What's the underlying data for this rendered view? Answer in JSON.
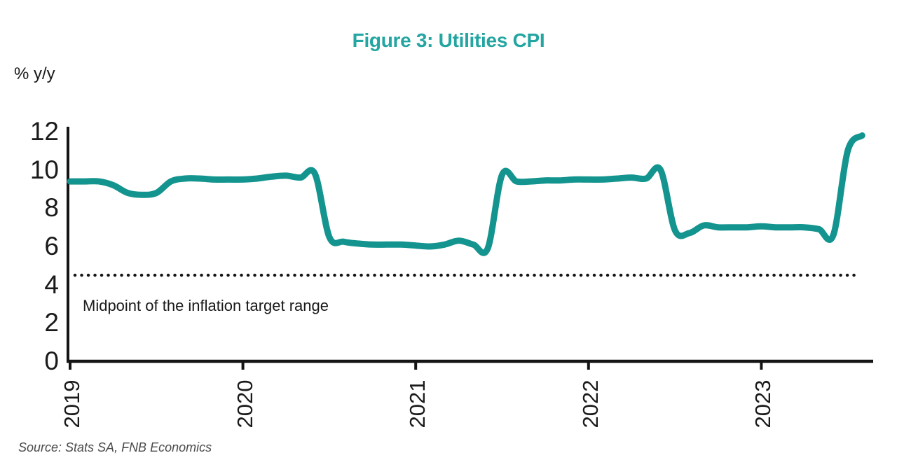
{
  "figure": {
    "title": "Figure 3: Utilities CPI",
    "y_unit_label": "% y/y",
    "annotation": "Midpoint of the inflation target range",
    "source": "Source: Stats SA, FNB Economics"
  },
  "colors": {
    "title_teal": "#23a5a1",
    "line_teal": "#14948f",
    "axis_black": "#141414",
    "dotted_line_black": "#141414",
    "text_dark": "#1a1a1a",
    "source_gray": "#4a4a4a"
  },
  "chart_data": {
    "type": "line",
    "title": "Figure 3: Utilities CPI",
    "xlabel": "",
    "ylabel": "% y/y",
    "x_start": "2019-01",
    "x_frequency": "monthly",
    "xticks": [
      "2019",
      "2020",
      "2021",
      "2022",
      "2023"
    ],
    "yticks": [
      0,
      2,
      4,
      6,
      8,
      10,
      12
    ],
    "ylim": [
      0,
      12
    ],
    "grid": false,
    "legend": "none",
    "series": [
      {
        "name": "Utilities CPI (% y/y)",
        "values": [
          9.4,
          9.4,
          9.4,
          9.2,
          8.8,
          8.7,
          8.8,
          9.4,
          9.55,
          9.55,
          9.5,
          9.5,
          9.5,
          9.55,
          9.65,
          9.7,
          9.6,
          9.8,
          6.5,
          6.25,
          6.15,
          6.1,
          6.1,
          6.1,
          6.05,
          6.0,
          6.1,
          6.3,
          6.1,
          5.9,
          9.75,
          9.4,
          9.4,
          9.45,
          9.45,
          9.5,
          9.5,
          9.5,
          9.55,
          9.6,
          9.55,
          10.0,
          6.85,
          6.7,
          7.1,
          7.0,
          7.0,
          7.0,
          7.05,
          7.0,
          7.0,
          7.0,
          6.9,
          6.6,
          11.0,
          11.8
        ]
      }
    ],
    "reference_line": {
      "value": 4.5,
      "style": "dotted",
      "label": "Midpoint of the inflation target range"
    }
  }
}
